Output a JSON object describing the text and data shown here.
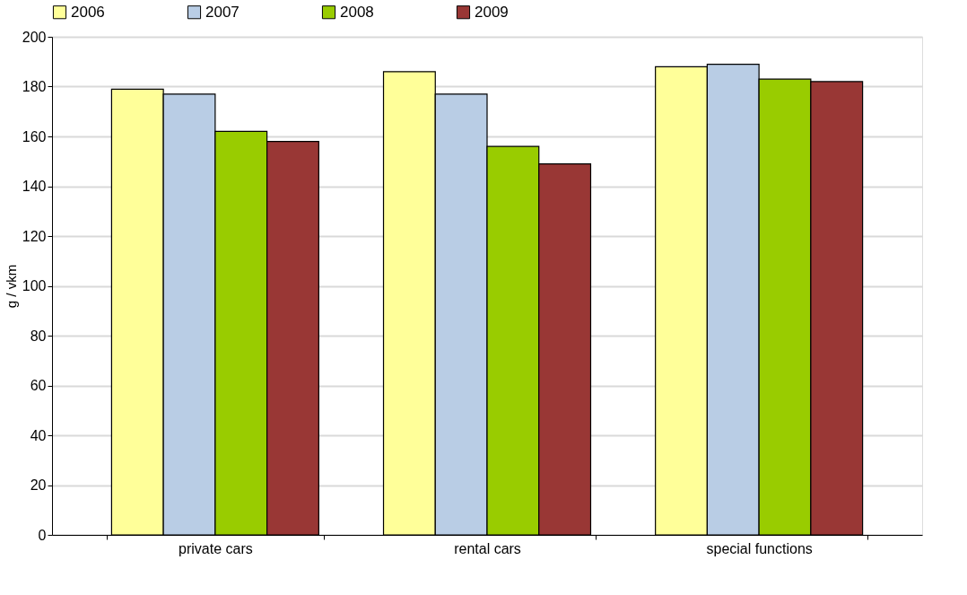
{
  "chart_data": {
    "type": "bar",
    "ylabel": "g / vkm",
    "categories": [
      "private cars",
      "rental cars",
      "special functions"
    ],
    "series": [
      {
        "name": "2006",
        "color": "#ffff99",
        "values": [
          179,
          186,
          188
        ]
      },
      {
        "name": "2007",
        "color": "#b9cde5",
        "values": [
          177,
          177,
          189
        ]
      },
      {
        "name": "2008",
        "color": "#99cc00",
        "values": [
          162,
          156,
          183
        ]
      },
      {
        "name": "2009",
        "color": "#993735",
        "values": [
          158,
          149,
          182
        ]
      }
    ],
    "ylim": [
      0,
      200
    ],
    "yticks": [
      0,
      20,
      40,
      60,
      80,
      100,
      120,
      140,
      160,
      180,
      200
    ],
    "grid": "y",
    "legend": "top"
  }
}
